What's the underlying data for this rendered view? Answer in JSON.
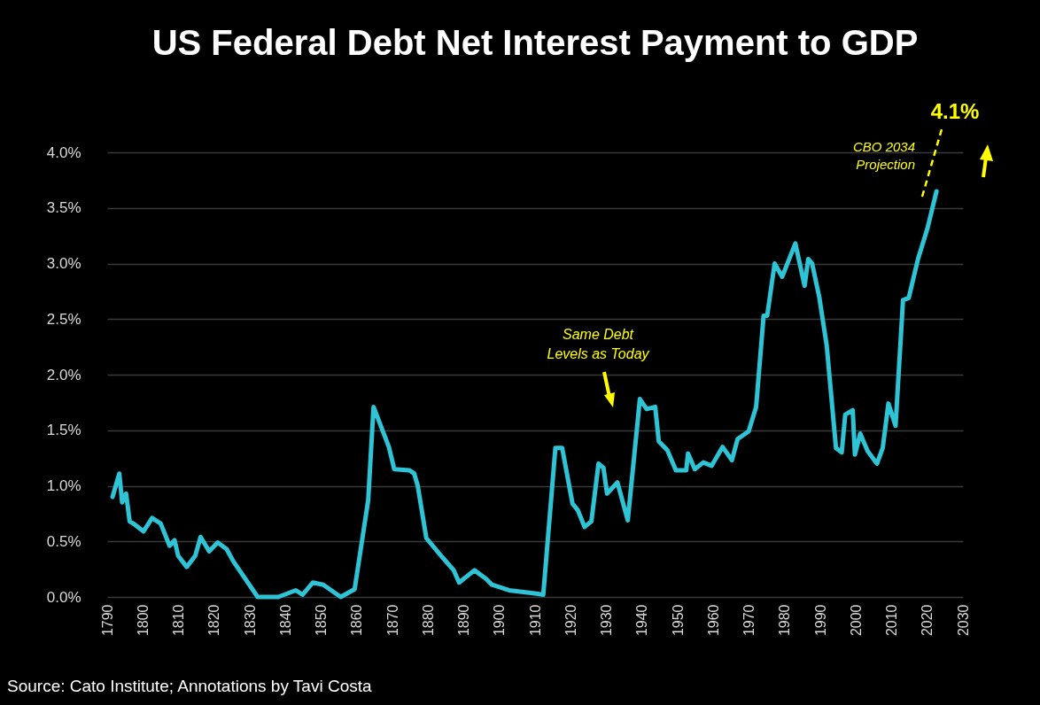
{
  "chart_data": {
    "type": "line",
    "title": "US Federal Debt Net Interest Payment to GDP",
    "x": [
      1791.5,
      1793.4,
      1794.2,
      1795.3,
      1796.3,
      1797.8,
      1800.2,
      1802.6,
      1805,
      1807.5,
      1808.9,
      1809.9,
      1812.3,
      1814.7,
      1816.2,
      1818.6,
      1821,
      1823.5,
      1825.4,
      1832.2,
      1838,
      1842.9,
      1844.8,
      1847.7,
      1850.6,
      1855.5,
      1859.4,
      1863.2,
      1864.7,
      1869,
      1870.5,
      1874.7,
      1876.1,
      1877.1,
      1879.5,
      1883.4,
      1887.2,
      1888.7,
      1893,
      1896.4,
      1897.9,
      1902.7,
      1910.4,
      1912.3,
      1915.7,
      1917.6,
      1920.5,
      1922,
      1923.9,
      1925.8,
      1927.8,
      1929.2,
      1930.2,
      1933.1,
      1936,
      1939.4,
      1941.3,
      1943.7,
      1944.7,
      1947.1,
      1949.5,
      1952.4,
      1952.9,
      1954.8,
      1957.2,
      1959.5,
      1962.6,
      1965.2,
      1966.8,
      1969.9,
      1972,
      1974.1,
      1975.1,
      1977.2,
      1979.3,
      1983,
      1985.6,
      1986.6,
      1987.7,
      1989.7,
      1991.8,
      1994.4,
      1996,
      1997,
      1999.1,
      1999.7,
      2001.2,
      2003.3,
      2005.9,
      2007.5,
      2009.1,
      2011.1,
      2013.2,
      2014.8,
      2017.4,
      2020,
      2022.6
    ],
    "series": [
      {
        "color": "#2ec4d6",
        "values": [
          0.9,
          1.11,
          0.85,
          0.93,
          0.68,
          0.65,
          0.59,
          0.71,
          0.66,
          0.46,
          0.51,
          0.37,
          0.27,
          0.37,
          0.54,
          0.41,
          0.49,
          0.43,
          0.32,
          0.0,
          0.0,
          0.06,
          0.02,
          0.13,
          0.11,
          0.0,
          0.07,
          0.87,
          1.71,
          1.35,
          1.15,
          1.14,
          1.11,
          1.0,
          0.53,
          0.38,
          0.24,
          0.13,
          0.24,
          0.16,
          0.11,
          0.06,
          0.03,
          0.02,
          1.34,
          1.34,
          0.84,
          0.78,
          0.63,
          0.68,
          1.2,
          1.16,
          0.93,
          1.03,
          0.69,
          1.78,
          1.69,
          1.71,
          1.4,
          1.32,
          1.14,
          1.14,
          1.29,
          1.15,
          1.21,
          1.18,
          1.35,
          1.23,
          1.42,
          1.49,
          1.71,
          2.53,
          2.53,
          3.0,
          2.88,
          3.18,
          2.8,
          3.04,
          3.0,
          2.7,
          2.26,
          1.34,
          1.3,
          1.64,
          1.68,
          1.28,
          1.47,
          1.31,
          1.2,
          1.34,
          1.74,
          1.54,
          2.67,
          2.69,
          3.04,
          3.31,
          3.65
        ]
      }
    ],
    "xlim": [
      1790,
      2030
    ],
    "xticks": [
      1790,
      1800,
      1810,
      1820,
      1830,
      1840,
      1850,
      1860,
      1870,
      1880,
      1890,
      1900,
      1910,
      1920,
      1930,
      1940,
      1950,
      1960,
      1970,
      1980,
      1990,
      2000,
      2010,
      2020,
      2030
    ],
    "ylim": [
      0,
      4
    ],
    "yticks": [
      {
        "value": 0,
        "label": "0.0%"
      },
      {
        "value": 0.5,
        "label": "0.5%"
      },
      {
        "value": 1,
        "label": "1.0%"
      },
      {
        "value": 1.5,
        "label": "1.5%"
      },
      {
        "value": 2,
        "label": "2.0%"
      },
      {
        "value": 2.5,
        "label": "2.5%"
      },
      {
        "value": 3,
        "label": "3.0%"
      },
      {
        "value": 3.5,
        "label": "3.5%"
      },
      {
        "value": 4,
        "label": "4.0%"
      }
    ],
    "grid": "y",
    "marker": "none",
    "line_style": "solid",
    "annotations": [
      "Same Debt\nLevels as Today",
      "CBO 2034\nProjection",
      "4.1%",
      "Source: Cato Institute; Annotations by Tavi Costa"
    ]
  }
}
